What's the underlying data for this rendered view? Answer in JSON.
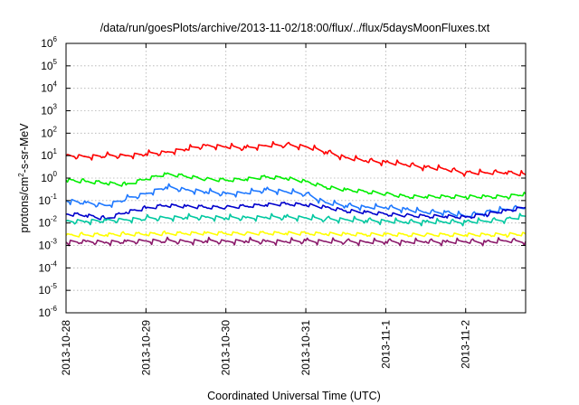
{
  "chart_data": {
    "type": "line",
    "title": "/data/run/goesPlots/archive/2013-11-02/18:00/flux/../flux/5daysMoonFluxes.txt",
    "xlabel": "Coordinated Universal Time (UTC)",
    "ylabel": "protons/cm²-s-sr-MeV",
    "ylabel_parts": {
      "pre": "protons/cm",
      "sup": "2",
      "post": "-s-sr-MeV"
    },
    "yscale": "log",
    "ylim": [
      1e-06,
      1000000.0
    ],
    "y_ticks": [
      {
        "value": 1e-06,
        "base": "10",
        "exp": "-6"
      },
      {
        "value": 1e-05,
        "base": "10",
        "exp": "-5"
      },
      {
        "value": 0.0001,
        "base": "10",
        "exp": "-4"
      },
      {
        "value": 0.001,
        "base": "10",
        "exp": "-3"
      },
      {
        "value": 0.01,
        "base": "10",
        "exp": "-2"
      },
      {
        "value": 0.1,
        "base": "10",
        "exp": "-1"
      },
      {
        "value": 1,
        "base": "10",
        "exp": "0"
      },
      {
        "value": 10,
        "base": "10",
        "exp": "1"
      },
      {
        "value": 100,
        "base": "10",
        "exp": "2"
      },
      {
        "value": 1000,
        "base": "10",
        "exp": "3"
      },
      {
        "value": 10000,
        "base": "10",
        "exp": "4"
      },
      {
        "value": 100000,
        "base": "10",
        "exp": "5"
      },
      {
        "value": 1000000,
        "base": "10",
        "exp": "6"
      }
    ],
    "xlim": [
      "2013-10-28 00:00",
      "2013-11-02 18:00"
    ],
    "x_ticks": [
      {
        "date": "2013-10-28",
        "label": "2013-10-28"
      },
      {
        "date": "2013-10-29",
        "label": "2013-10-29"
      },
      {
        "date": "2013-10-30",
        "label": "2013-10-30"
      },
      {
        "date": "2013-10-31",
        "label": "2013-10-31"
      },
      {
        "date": "2013-11-01",
        "label": "2013-11-1"
      },
      {
        "date": "2013-11-02",
        "label": "2013-11-2"
      }
    ],
    "grid": true,
    "legend": "none",
    "series": [
      {
        "color": "#ff0000",
        "x": [
          "2013-10-28 00:00",
          "2013-10-28 06:00",
          "2013-10-28 12:00",
          "2013-10-28 18:00",
          "2013-10-29 00:00",
          "2013-10-29 06:00",
          "2013-10-29 12:00",
          "2013-10-29 18:00",
          "2013-10-30 00:00",
          "2013-10-30 06:00",
          "2013-10-30 12:00",
          "2013-10-30 18:00",
          "2013-10-31 00:00",
          "2013-10-31 06:00",
          "2013-10-31 12:00",
          "2013-10-31 18:00",
          "2013-11-01 00:00",
          "2013-11-01 06:00",
          "2013-11-01 12:00",
          "2013-11-01 18:00",
          "2013-11-02 00:00",
          "2013-11-02 06:00",
          "2013-11-02 12:00",
          "2013-11-02 18:00"
        ],
        "y": [
          10,
          9,
          10,
          10,
          12,
          14,
          20,
          28,
          25,
          22,
          28,
          30,
          25,
          15,
          8,
          6,
          5,
          4,
          3,
          2.5,
          1.7,
          1.7,
          1.8,
          1.4
        ]
      },
      {
        "color": "#00ee00",
        "x": [
          "2013-10-28 00:00",
          "2013-10-28 06:00",
          "2013-10-28 12:00",
          "2013-10-28 18:00",
          "2013-10-29 00:00",
          "2013-10-29 06:00",
          "2013-10-29 12:00",
          "2013-10-29 18:00",
          "2013-10-30 00:00",
          "2013-10-30 06:00",
          "2013-10-30 12:00",
          "2013-10-30 18:00",
          "2013-10-31 00:00",
          "2013-10-31 06:00",
          "2013-10-31 12:00",
          "2013-10-31 18:00",
          "2013-11-01 00:00",
          "2013-11-01 06:00",
          "2013-11-01 12:00",
          "2013-11-01 18:00",
          "2013-11-02 00:00",
          "2013-11-02 06:00",
          "2013-11-02 12:00",
          "2013-11-02 18:00"
        ],
        "y": [
          0.8,
          0.7,
          0.6,
          0.5,
          0.9,
          1.5,
          1.2,
          0.9,
          0.8,
          0.9,
          1.1,
          1.0,
          0.7,
          0.4,
          0.3,
          0.25,
          0.2,
          0.15,
          0.15,
          0.15,
          0.15,
          0.15,
          0.15,
          0.2
        ]
      },
      {
        "color": "#1e78ff",
        "x": [
          "2013-10-28 00:00",
          "2013-10-28 06:00",
          "2013-10-28 12:00",
          "2013-10-28 18:00",
          "2013-10-29 00:00",
          "2013-10-29 06:00",
          "2013-10-29 12:00",
          "2013-10-29 18:00",
          "2013-10-30 00:00",
          "2013-10-30 06:00",
          "2013-10-30 12:00",
          "2013-10-30 18:00",
          "2013-10-31 00:00",
          "2013-10-31 06:00",
          "2013-10-31 12:00",
          "2013-10-31 18:00",
          "2013-11-01 00:00",
          "2013-11-01 06:00",
          "2013-11-01 12:00",
          "2013-11-01 18:00",
          "2013-11-02 00:00",
          "2013-11-02 06:00",
          "2013-11-02 12:00",
          "2013-11-02 18:00"
        ],
        "y": [
          0.1,
          0.08,
          0.06,
          0.12,
          0.2,
          0.4,
          0.3,
          0.25,
          0.2,
          0.22,
          0.3,
          0.25,
          0.2,
          0.08,
          0.06,
          0.05,
          0.05,
          0.04,
          0.03,
          0.03,
          0.02,
          0.03,
          0.04,
          0.05
        ]
      },
      {
        "color": "#0000cc",
        "x": [
          "2013-10-28 00:00",
          "2013-10-28 06:00",
          "2013-10-28 12:00",
          "2013-10-28 18:00",
          "2013-10-29 00:00",
          "2013-10-29 06:00",
          "2013-10-29 12:00",
          "2013-10-29 18:00",
          "2013-10-30 00:00",
          "2013-10-30 06:00",
          "2013-10-30 12:00",
          "2013-10-30 18:00",
          "2013-10-31 00:00",
          "2013-10-31 06:00",
          "2013-10-31 12:00",
          "2013-10-31 18:00",
          "2013-11-01 00:00",
          "2013-11-01 06:00",
          "2013-11-01 12:00",
          "2013-11-01 18:00",
          "2013-11-02 00:00",
          "2013-11-02 06:00",
          "2013-11-02 12:00",
          "2013-11-02 18:00"
        ],
        "y": [
          0.025,
          0.022,
          0.015,
          0.03,
          0.045,
          0.06,
          0.055,
          0.05,
          0.05,
          0.055,
          0.065,
          0.07,
          0.065,
          0.05,
          0.035,
          0.03,
          0.025,
          0.022,
          0.02,
          0.02,
          0.018,
          0.025,
          0.035,
          0.05
        ]
      },
      {
        "color": "#00c8a0",
        "x": [
          "2013-10-28 00:00",
          "2013-10-28 06:00",
          "2013-10-28 12:00",
          "2013-10-28 18:00",
          "2013-10-29 00:00",
          "2013-10-29 06:00",
          "2013-10-29 12:00",
          "2013-10-29 18:00",
          "2013-10-30 00:00",
          "2013-10-30 06:00",
          "2013-10-30 12:00",
          "2013-10-30 18:00",
          "2013-10-31 00:00",
          "2013-10-31 06:00",
          "2013-10-31 12:00",
          "2013-10-31 18:00",
          "2013-11-01 00:00",
          "2013-11-01 06:00",
          "2013-11-01 12:00",
          "2013-11-01 18:00",
          "2013-11-02 00:00",
          "2013-11-02 06:00",
          "2013-11-02 12:00",
          "2013-11-02 18:00"
        ],
        "y": [
          0.012,
          0.012,
          0.013,
          0.014,
          0.016,
          0.017,
          0.018,
          0.018,
          0.017,
          0.017,
          0.018,
          0.018,
          0.017,
          0.015,
          0.014,
          0.013,
          0.012,
          0.011,
          0.011,
          0.011,
          0.011,
          0.012,
          0.014,
          0.02
        ]
      },
      {
        "color": "#ffff00",
        "x": [
          "2013-10-28 00:00",
          "2013-10-28 06:00",
          "2013-10-28 12:00",
          "2013-10-28 18:00",
          "2013-10-29 00:00",
          "2013-10-29 06:00",
          "2013-10-29 12:00",
          "2013-10-29 18:00",
          "2013-10-30 00:00",
          "2013-10-30 06:00",
          "2013-10-30 12:00",
          "2013-10-30 18:00",
          "2013-10-31 00:00",
          "2013-10-31 06:00",
          "2013-10-31 12:00",
          "2013-10-31 18:00",
          "2013-11-01 00:00",
          "2013-11-01 06:00",
          "2013-11-01 12:00",
          "2013-11-01 18:00",
          "2013-11-02 00:00",
          "2013-11-02 06:00",
          "2013-11-02 12:00",
          "2013-11-02 18:00"
        ],
        "y": [
          0.0028,
          0.0029,
          0.003,
          0.0031,
          0.0032,
          0.0033,
          0.0034,
          0.0035,
          0.0034,
          0.0034,
          0.0035,
          0.0035,
          0.0034,
          0.0033,
          0.0032,
          0.0031,
          0.0031,
          0.003,
          0.003,
          0.003,
          0.003,
          0.003,
          0.0031,
          0.0032
        ]
      },
      {
        "color": "#8b1a6b",
        "x": [
          "2013-10-28 00:00",
          "2013-10-28 06:00",
          "2013-10-28 12:00",
          "2013-10-28 18:00",
          "2013-10-29 00:00",
          "2013-10-29 06:00",
          "2013-10-29 12:00",
          "2013-10-29 18:00",
          "2013-10-30 00:00",
          "2013-10-30 06:00",
          "2013-10-30 12:00",
          "2013-10-30 18:00",
          "2013-10-31 00:00",
          "2013-10-31 06:00",
          "2013-10-31 12:00",
          "2013-10-31 18:00",
          "2013-11-01 00:00",
          "2013-11-01 06:00",
          "2013-11-01 12:00",
          "2013-11-01 18:00",
          "2013-11-02 00:00",
          "2013-11-02 06:00",
          "2013-11-02 12:00",
          "2013-11-02 18:00"
        ],
        "y": [
          0.0014,
          0.0015,
          0.0014,
          0.0015,
          0.0016,
          0.0016,
          0.0015,
          0.0016,
          0.0015,
          0.0016,
          0.0015,
          0.0015,
          0.0016,
          0.0015,
          0.0015,
          0.0014,
          0.0015,
          0.0014,
          0.0015,
          0.0014,
          0.0015,
          0.0014,
          0.0016,
          0.0015
        ]
      }
    ]
  }
}
